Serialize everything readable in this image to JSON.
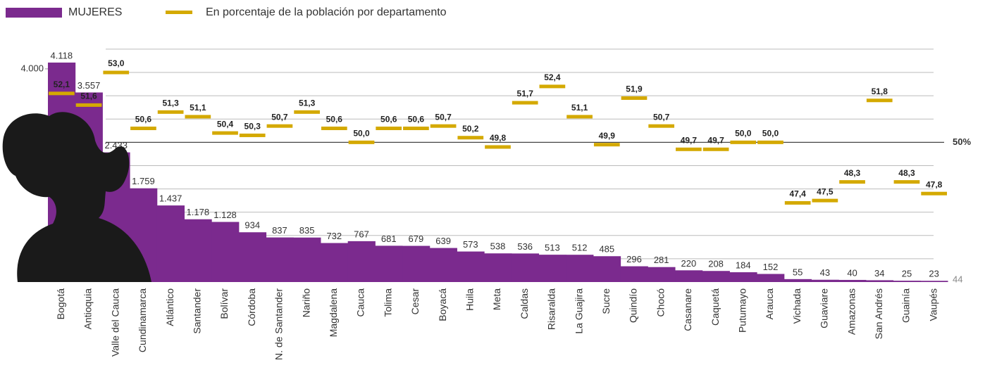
{
  "chart_data": {
    "type": "bar",
    "categories": [
      "Bogotá",
      "Antioquia",
      "Valle del Cauca",
      "Cundinamarca",
      "Atlántico",
      "Santander",
      "Bolívar",
      "Córdoba",
      "N. de Santander",
      "Nariño",
      "Magdalena",
      "Cauca",
      "Tolima",
      "Cesar",
      "Boyacá",
      "Huila",
      "Meta",
      "Caldas",
      "Risaralda",
      "La Guajira",
      "Sucre",
      "Quindío",
      "Chocó",
      "Casanare",
      "Caquetá",
      "Putumayo",
      "Arauca",
      "Vichada",
      "Guaviare",
      "Amazonas",
      "San Andrés",
      "Guainía",
      "Vaupés"
    ],
    "series": [
      {
        "name": "MUJERES",
        "type": "bar",
        "color": "#7b2a8e",
        "values": [
          4118,
          3557,
          2433,
          1759,
          1437,
          1178,
          1128,
          934,
          837,
          835,
          732,
          767,
          681,
          679,
          639,
          573,
          538,
          536,
          513,
          512,
          485,
          296,
          281,
          220,
          208,
          184,
          152,
          55,
          43,
          40,
          34,
          25,
          23
        ],
        "value_labels": [
          "4.118",
          "3.557",
          "2.433",
          "1.759",
          "1.437",
          "1.178",
          "1.128",
          "934",
          "837",
          "835",
          "732",
          "767",
          "681",
          "679",
          "639",
          "573",
          "538",
          "536",
          "513",
          "512",
          "485",
          "296",
          "281",
          "220",
          "208",
          "184",
          "152",
          "55",
          "43",
          "40",
          "34",
          "25",
          "23"
        ]
      },
      {
        "name": "En porcentaje de la población por departamento",
        "type": "marker",
        "axis": "y2",
        "color": "#d4a900",
        "values": [
          52.1,
          51.6,
          53.0,
          50.6,
          51.3,
          51.1,
          50.4,
          50.3,
          50.7,
          51.3,
          50.6,
          50.0,
          50.6,
          50.6,
          50.7,
          50.2,
          49.8,
          51.7,
          52.4,
          51.1,
          49.9,
          51.9,
          50.7,
          49.7,
          49.7,
          50.0,
          50.0,
          47.4,
          47.5,
          48.3,
          51.8,
          48.3,
          47.8
        ],
        "value_labels": [
          "52,1",
          "51,6",
          "53,0",
          "50,6",
          "51,3",
          "51,1",
          "50,4",
          "50,3",
          "50,7",
          "51,3",
          "50,6",
          "50,0",
          "50,6",
          "50,6",
          "50,7",
          "50,2",
          "49,8",
          "51,7",
          "52,4",
          "51,1",
          "49,9",
          "51,9",
          "50,7",
          "49,7",
          "49,7",
          "50,0",
          "50,0",
          "47,4",
          "47,5",
          "48,3",
          "51,8",
          "48,3",
          "47,8"
        ]
      }
    ],
    "ylim": [
      0,
      4500
    ],
    "yticks": [
      {
        "value": 4000,
        "label": "4.000"
      }
    ],
    "y2lim": [
      44,
      54.3
    ],
    "y2ticks": [
      44,
      {
        "value": 50,
        "label": "50%"
      }
    ],
    "y2grid": [
      45,
      46,
      47,
      48,
      49,
      51,
      52,
      53,
      54
    ]
  }
}
